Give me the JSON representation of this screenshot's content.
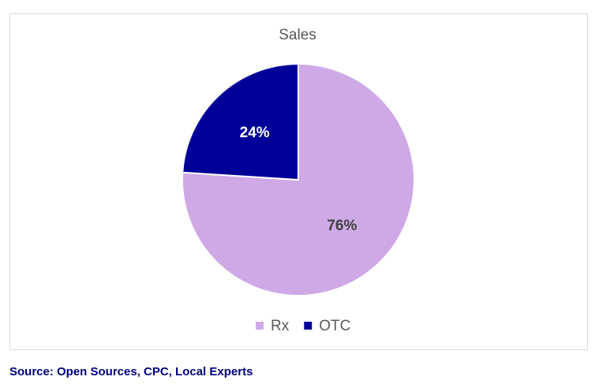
{
  "chart_data": {
    "type": "pie",
    "title": "Sales",
    "categories": [
      "Rx",
      "OTC"
    ],
    "values": [
      76,
      24
    ],
    "value_labels": [
      "76%",
      "24%"
    ],
    "colors": [
      "#cfa8e6",
      "#000099"
    ],
    "legend": "bottom",
    "source": "Source: Open Sources, CPC, Local Experts"
  }
}
